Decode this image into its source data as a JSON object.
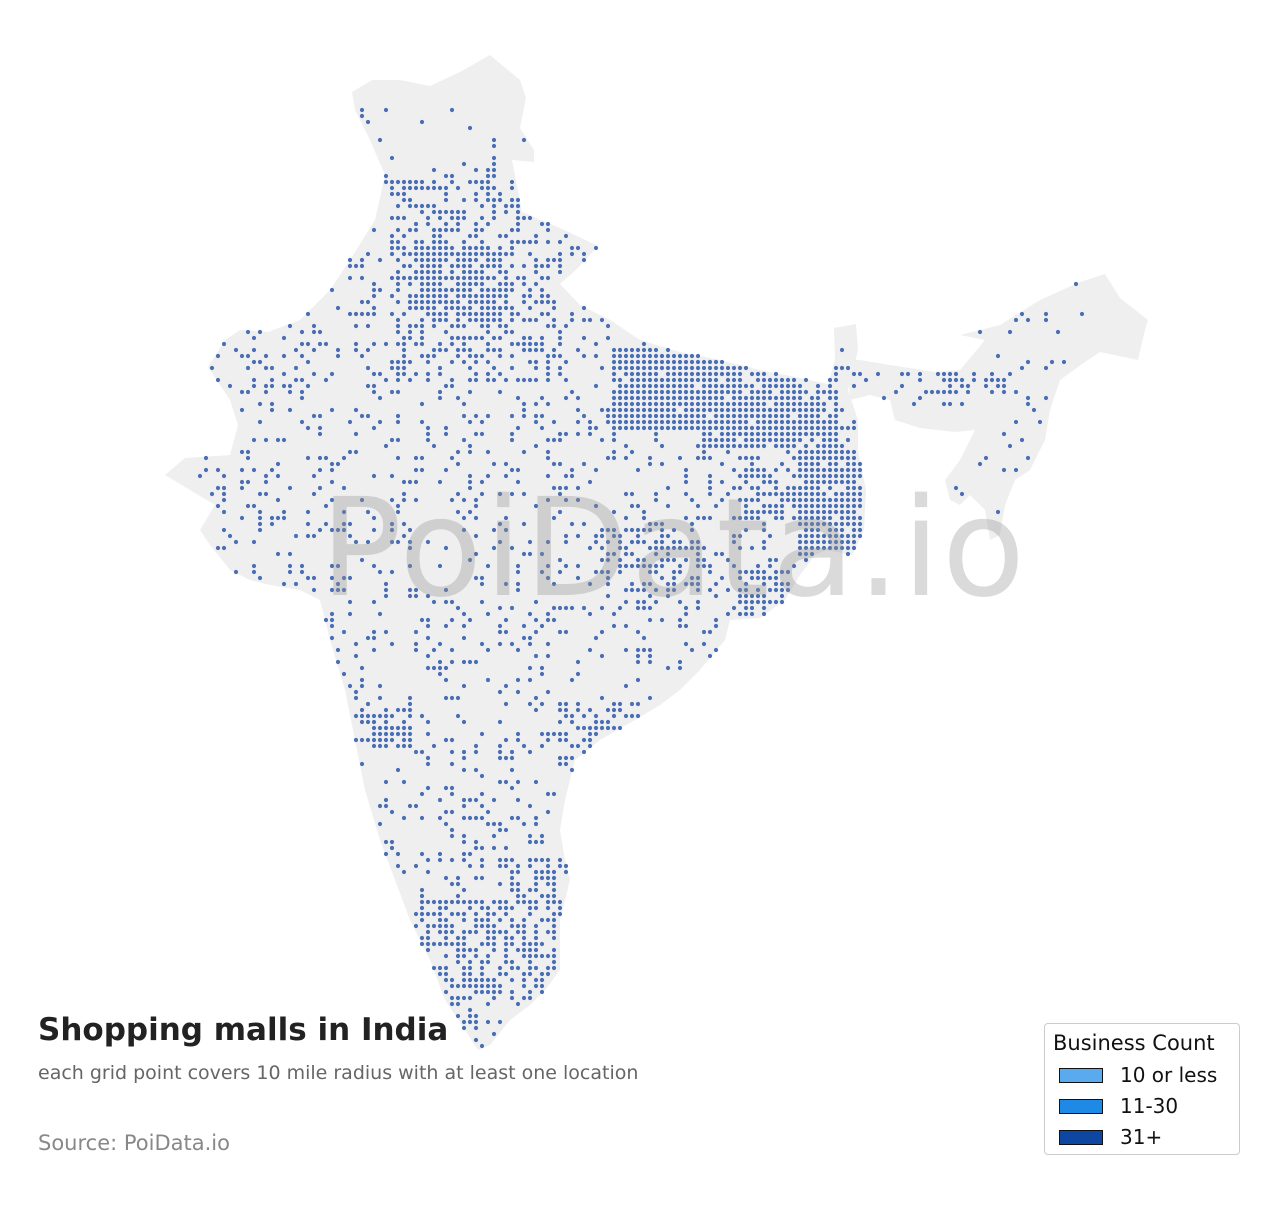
{
  "map": {
    "title": "Shopping malls in India",
    "subtitle": "each grid point covers 10 mile radius with at least one location",
    "source": "Source: PoiData.io",
    "watermark": "PoiData.io",
    "land_color": "#efefef",
    "dot_color": "#4a6fb5"
  },
  "legend": {
    "title": "Business Count",
    "items": [
      {
        "label": "10 or less",
        "color": "#5aaaf0"
      },
      {
        "label": "11-30",
        "color": "#1f8ae6"
      },
      {
        "label": "31+",
        "color": "#0d47a1"
      }
    ]
  }
}
